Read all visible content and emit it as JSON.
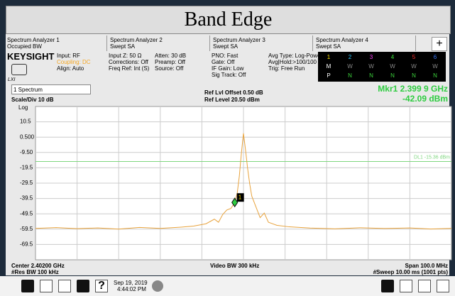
{
  "title": "Band Edge",
  "tabs": [
    {
      "name": "Spectrum Analyzer 1",
      "mode": "Occupied BW"
    },
    {
      "name": "Spectrum Analyzer 2",
      "mode": "Swept SA"
    },
    {
      "name": "Spectrum Analyzer 3",
      "mode": "Swept SA"
    },
    {
      "name": "Spectrum Analyzer 4",
      "mode": "Swept SA"
    }
  ],
  "settings": {
    "brand": "KEYSIGHT",
    "lxi": "LXI",
    "columns": [
      [
        "Input: RF",
        "Coupling: DC",
        "Align: Auto"
      ],
      [
        "Input Z: 50 Ω",
        "Corrections: Off",
        "Freq Ref: Int (S)"
      ],
      [
        "Atten: 30 dB",
        "Preamp: Off",
        "Source: Off"
      ],
      [
        "PNO: Fast",
        "Gate: Off",
        "IF Gain: Low",
        "Sig Track: Off"
      ],
      [
        "Avg Type: Log-Power",
        "Avg|Hold:>100/100",
        "Trig: Free Run"
      ]
    ]
  },
  "traces": {
    "numbers": [
      "1",
      "2",
      "3",
      "4",
      "5",
      "6"
    ],
    "rows": [
      [
        "M",
        "W",
        "W",
        "W",
        "W",
        "W"
      ],
      [
        "P",
        "N",
        "N",
        "N",
        "N",
        "N"
      ]
    ]
  },
  "spectrum": {
    "window": "1 Spectrum",
    "ref_offset": "Ref Lvl Offset 0.50 dB",
    "ref_level": "Ref Level 20.50 dBm",
    "marker_label": "Mkr1  2.399 9 GHz",
    "marker_value": "-42.09 dBm",
    "scale": "Scale/Div 10 dB",
    "log": "Log",
    "ylim": [
      -79.5,
      20.5
    ],
    "xlim": [
      2352,
      2452
    ],
    "yticks": [
      10.5,
      {
        "value": 0.5,
        "label": "0.500"
      },
      {
        "value": -9.5,
        "label": "-9.50"
      },
      -19.5,
      -29.5,
      -39.5,
      -49.5,
      -59.5,
      -69.5
    ],
    "display_line": {
      "label": "DL1 -15.36 dBm",
      "value": -15.36
    },
    "marker": {
      "label": "1",
      "x": 2399.9,
      "value": -42.09
    },
    "trace": {
      "x": [
        2352,
        2357,
        2362,
        2367,
        2372,
        2377,
        2382,
        2387,
        2390,
        2393,
        2395,
        2396,
        2397,
        2398,
        2399,
        2399.9,
        2400.5,
        2401,
        2401.5,
        2402,
        2402.5,
        2403,
        2403.5,
        2404,
        2405,
        2406,
        2407,
        2408,
        2410,
        2413,
        2418,
        2424,
        2430,
        2436,
        2442,
        2447,
        2452
      ],
      "values": [
        -59,
        -58.5,
        -59.2,
        -58.7,
        -59.5,
        -58.4,
        -59,
        -58.2,
        -57.5,
        -56,
        -53,
        -55,
        -50,
        -47,
        -46,
        -42.09,
        -36,
        -25,
        -10,
        3,
        -8,
        -20,
        -30,
        -38,
        -45,
        -52,
        -49,
        -55,
        -57,
        -58,
        -58.8,
        -59.3,
        -58.6,
        -59.1,
        -58.7,
        -59.4,
        -59
      ]
    },
    "footer": {
      "center": "Center 2.40200 GHz",
      "vbw": "Video BW 300 kHz",
      "span": "Span 100.0 MHz",
      "rbw": "#Res BW 100 kHz",
      "sweep": "#Sweep 10.00 ms (1001 pts)"
    }
  },
  "taskbar": {
    "date": "Sep 19, 2019",
    "time": "4:44:02 PM"
  }
}
